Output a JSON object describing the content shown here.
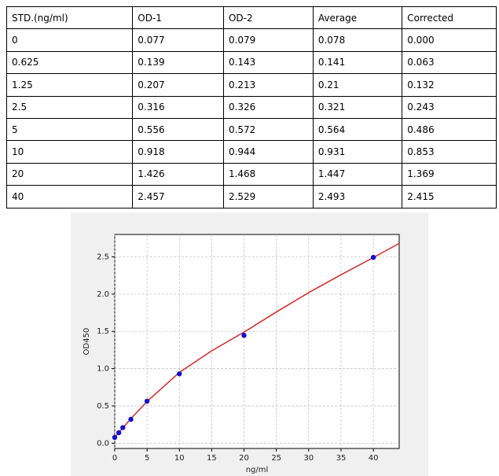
{
  "table": {
    "header": [
      "STD.(ng/ml)",
      "OD-1",
      "OD-2",
      "Average",
      "Corrected"
    ],
    "rows": [
      [
        "0",
        "0.077",
        "0.079",
        "0.078",
        "0.000"
      ],
      [
        "0.625",
        "0.139",
        "0.143",
        "0.141",
        "0.063"
      ],
      [
        "1.25",
        "0.207",
        "0.213",
        "0.21",
        "0.132"
      ],
      [
        "2.5",
        "0.316",
        "0.326",
        "0.321",
        "0.243"
      ],
      [
        "5",
        "0.556",
        "0.572",
        "0.564",
        "0.486"
      ],
      [
        "10",
        "0.918",
        "0.944",
        "0.931",
        "0.853"
      ],
      [
        "20",
        "1.426",
        "1.468",
        "1.447",
        "1.369"
      ],
      [
        "40",
        "2.457",
        "2.529",
        "2.493",
        "2.415"
      ]
    ]
  },
  "chart_data": {
    "type": "scatter",
    "xlabel": "ng/ml",
    "ylabel": "OD450",
    "xlim": [
      0,
      44
    ],
    "ylim": [
      -0.07,
      2.8
    ],
    "xticks": [
      0,
      5,
      10,
      15,
      20,
      25,
      30,
      35,
      40
    ],
    "yticks": [
      {
        "value": 0,
        "label": "0.0"
      },
      0.5,
      {
        "value": 1,
        "label": "1.0"
      },
      1.5,
      {
        "value": 2,
        "label": "2.0"
      },
      2.5
    ],
    "grid": true,
    "series": [
      {
        "type": "line",
        "color": "#d62728",
        "x": [
          0,
          2.5,
          5,
          10,
          15,
          20,
          25,
          30,
          35,
          40,
          44
        ],
        "values": [
          0.08,
          0.33,
          0.56,
          0.95,
          1.24,
          1.49,
          1.76,
          2.02,
          2.26,
          2.49,
          2.68
        ]
      },
      {
        "type": "scatter",
        "color": "#1010d0",
        "x": [
          0,
          0.625,
          1.25,
          2.5,
          5,
          10,
          20,
          40
        ],
        "values": [
          0.078,
          0.141,
          0.21,
          0.321,
          0.564,
          0.931,
          1.447,
          2.493
        ]
      }
    ]
  }
}
